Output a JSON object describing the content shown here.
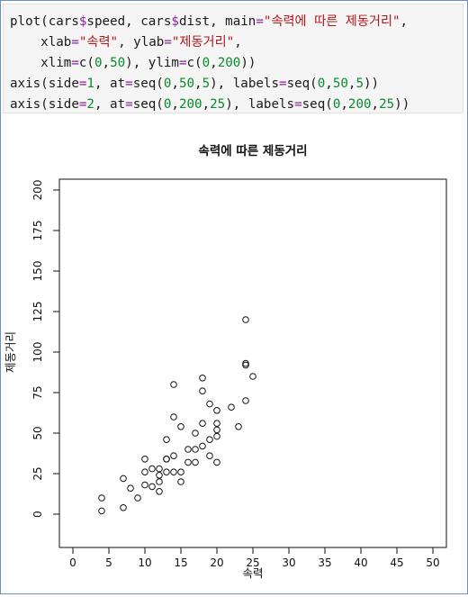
{
  "code": {
    "lines": [
      [
        {
          "t": "plain",
          "text": "plot(cars"
        },
        {
          "t": "op",
          "text": "$"
        },
        {
          "t": "plain",
          "text": "speed, cars"
        },
        {
          "t": "op",
          "text": "$"
        },
        {
          "t": "plain",
          "text": "dist, main"
        },
        {
          "t": "op",
          "text": "="
        },
        {
          "t": "str",
          "text": "\"속력에 따른 제동거리\""
        },
        {
          "t": "plain",
          "text": ","
        }
      ],
      [
        {
          "t": "plain",
          "text": "    xlab"
        },
        {
          "t": "op",
          "text": "="
        },
        {
          "t": "str",
          "text": "\"속력\""
        },
        {
          "t": "plain",
          "text": ", ylab"
        },
        {
          "t": "op",
          "text": "="
        },
        {
          "t": "str",
          "text": "\"제동거리\""
        },
        {
          "t": "plain",
          "text": ","
        }
      ],
      [
        {
          "t": "plain",
          "text": "    xlim"
        },
        {
          "t": "op",
          "text": "="
        },
        {
          "t": "plain",
          "text": "c("
        },
        {
          "t": "num",
          "text": "0"
        },
        {
          "t": "plain",
          "text": ","
        },
        {
          "t": "num",
          "text": "50"
        },
        {
          "t": "plain",
          "text": "), ylim"
        },
        {
          "t": "op",
          "text": "="
        },
        {
          "t": "plain",
          "text": "c("
        },
        {
          "t": "num",
          "text": "0"
        },
        {
          "t": "plain",
          "text": ","
        },
        {
          "t": "num",
          "text": "200"
        },
        {
          "t": "plain",
          "text": "))"
        }
      ],
      [
        {
          "t": "plain",
          "text": "axis(side"
        },
        {
          "t": "op",
          "text": "="
        },
        {
          "t": "num",
          "text": "1"
        },
        {
          "t": "plain",
          "text": ", at"
        },
        {
          "t": "op",
          "text": "="
        },
        {
          "t": "plain",
          "text": "seq("
        },
        {
          "t": "num",
          "text": "0"
        },
        {
          "t": "plain",
          "text": ","
        },
        {
          "t": "num",
          "text": "50"
        },
        {
          "t": "plain",
          "text": ","
        },
        {
          "t": "num",
          "text": "5"
        },
        {
          "t": "plain",
          "text": "), labels"
        },
        {
          "t": "op",
          "text": "="
        },
        {
          "t": "plain",
          "text": "seq("
        },
        {
          "t": "num",
          "text": "0"
        },
        {
          "t": "plain",
          "text": ","
        },
        {
          "t": "num",
          "text": "50"
        },
        {
          "t": "plain",
          "text": ","
        },
        {
          "t": "num",
          "text": "5"
        },
        {
          "t": "plain",
          "text": "))"
        }
      ],
      [
        {
          "t": "plain",
          "text": "axis(side"
        },
        {
          "t": "op",
          "text": "="
        },
        {
          "t": "num",
          "text": "2"
        },
        {
          "t": "plain",
          "text": ", at"
        },
        {
          "t": "op",
          "text": "="
        },
        {
          "t": "plain",
          "text": "seq("
        },
        {
          "t": "num",
          "text": "0"
        },
        {
          "t": "plain",
          "text": ","
        },
        {
          "t": "num",
          "text": "200"
        },
        {
          "t": "plain",
          "text": ","
        },
        {
          "t": "num",
          "text": "25"
        },
        {
          "t": "plain",
          "text": "), labels"
        },
        {
          "t": "op",
          "text": "="
        },
        {
          "t": "plain",
          "text": "seq("
        },
        {
          "t": "num",
          "text": "0"
        },
        {
          "t": "plain",
          "text": ","
        },
        {
          "t": "num",
          "text": "200"
        },
        {
          "t": "plain",
          "text": ","
        },
        {
          "t": "num",
          "text": "25"
        },
        {
          "t": "plain",
          "text": "))"
        }
      ]
    ]
  },
  "colors": {
    "string": "#b0171b",
    "number": "#078b2b",
    "operator": "#8d1fa1",
    "plain": "#1b1b1b",
    "frame_border": "#6b8fc7",
    "code_background": "#f5f5f5"
  },
  "chart_data": {
    "type": "scatter",
    "title": "속력에 따른 제동거리",
    "xlabel": "속력",
    "ylabel": "제동거리",
    "xlim": [
      0,
      50
    ],
    "ylim": [
      0,
      200
    ],
    "x_ticks": [
      0,
      5,
      10,
      15,
      20,
      25,
      30,
      35,
      40,
      45,
      50
    ],
    "y_ticks": [
      0,
      25,
      50,
      75,
      100,
      125,
      150,
      175,
      200
    ],
    "grid": false,
    "marker": "open-circle",
    "series": [
      {
        "x": [
          4,
          4,
          7,
          7,
          8,
          9,
          10,
          10,
          10,
          11,
          11,
          12,
          12,
          12,
          12,
          13,
          13,
          13,
          13,
          14,
          14,
          14,
          14,
          15,
          15,
          15,
          16,
          16,
          17,
          17,
          17,
          18,
          18,
          18,
          18,
          19,
          19,
          19,
          20,
          20,
          20,
          20,
          20,
          22,
          23,
          24,
          24,
          24,
          24,
          25
        ],
        "y": [
          2,
          10,
          4,
          22,
          16,
          10,
          18,
          26,
          34,
          17,
          28,
          14,
          20,
          24,
          28,
          26,
          34,
          34,
          46,
          26,
          36,
          60,
          80,
          20,
          26,
          54,
          32,
          40,
          32,
          40,
          50,
          42,
          56,
          76,
          84,
          36,
          46,
          68,
          32,
          48,
          52,
          56,
          64,
          66,
          54,
          70,
          92,
          93,
          120,
          85
        ]
      }
    ]
  }
}
